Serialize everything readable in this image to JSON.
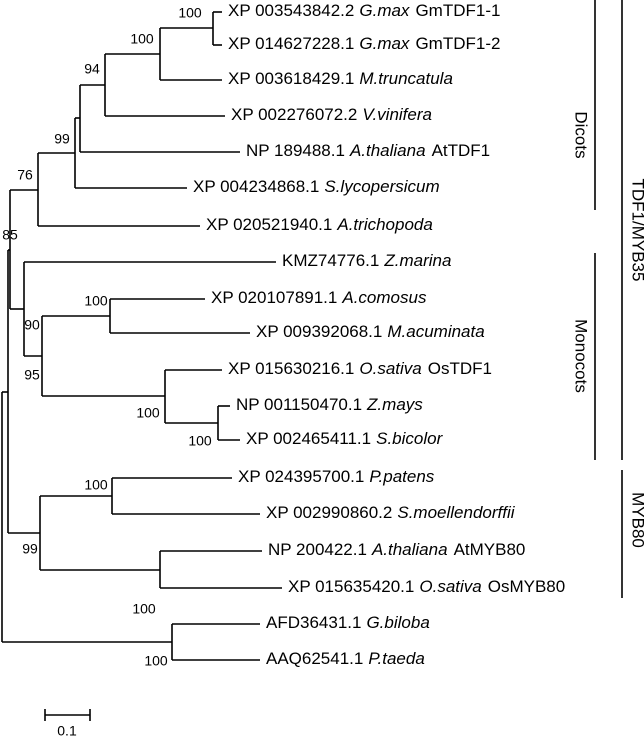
{
  "leaves": [
    {
      "accession": "XP 003543842.2",
      "species": "G.max",
      "gene": "GmTDF1-1"
    },
    {
      "accession": "XP 014627228.1",
      "species": "G.max",
      "gene": "GmTDF1-2"
    },
    {
      "accession": "XP 003618429.1",
      "species": "M.truncatula"
    },
    {
      "accession": "XP 002276072.2",
      "species": "V.vinifera"
    },
    {
      "accession": "NP 189488.1",
      "species": "A.thaliana",
      "gene": "AtTDF1"
    },
    {
      "accession": "XP 004234868.1",
      "species": "S.lycopersicum"
    },
    {
      "accession": "XP 020521940.1",
      "species": "A.trichopoda"
    },
    {
      "accession": "KMZ74776.1",
      "species": "Z.marina"
    },
    {
      "accession": "XP 020107891.1",
      "species": "A.comosus"
    },
    {
      "accession": "XP 009392068.1",
      "species": "M.acuminata"
    },
    {
      "accession": "XP 015630216.1",
      "species": "O.sativa",
      "gene": "OsTDF1"
    },
    {
      "accession": "NP 001150470.1",
      "species": "Z.mays"
    },
    {
      "accession": "XP 002465411.1",
      "species": "S.bicolor"
    },
    {
      "accession": "XP 024395700.1",
      "species": "P.patens"
    },
    {
      "accession": "XP 002990860.2",
      "species": "S.moellendorffii"
    },
    {
      "accession": "NP 200422.1",
      "species": "A.thaliana",
      "gene": "AtMYB80"
    },
    {
      "accession": "XP 015635420.1",
      "species": "O.sativa",
      "gene": "OsMYB80"
    },
    {
      "accession": "AFD36431.1",
      "species": "G.biloba"
    },
    {
      "accession": "AAQ62541.1",
      "species": "P.taeda"
    }
  ],
  "bootstraps": [
    100,
    100,
    94,
    99,
    76,
    85,
    100,
    90,
    95,
    100,
    100,
    100,
    99,
    100,
    100
  ],
  "clades": [
    "Dicots",
    "Monocots",
    "TDF1/MYB35",
    "MYB80"
  ],
  "scale_bar": "0.1"
}
